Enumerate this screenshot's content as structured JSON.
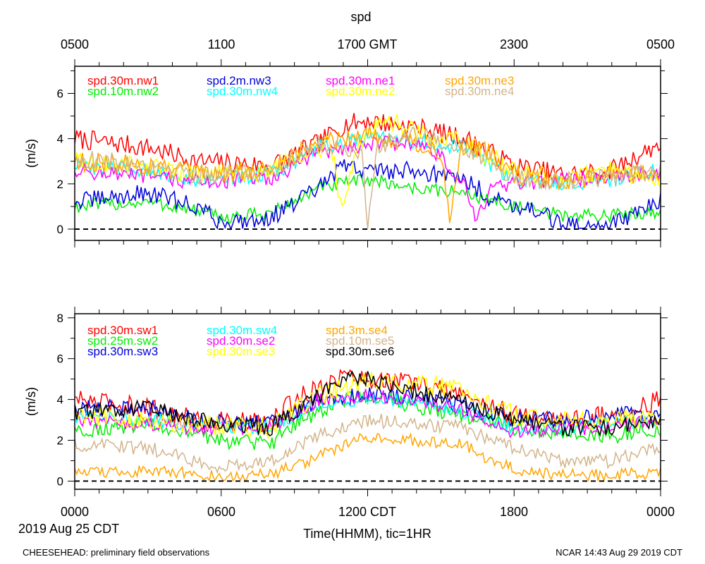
{
  "title": "spd",
  "top_axis": {
    "ticks": [
      "0500",
      "1100",
      "1700 GMT",
      "2300",
      "0500"
    ]
  },
  "bottom_axis": {
    "ticks": [
      "0000",
      "0600",
      "1200 CDT",
      "1800",
      "0000"
    ],
    "label": "Time(HHMM), tic=1HR",
    "date": "2019 Aug 25 CDT"
  },
  "footer": {
    "left": "CHEESEHEAD: preliminary field observations",
    "right": "NCAR 14:43 Aug 29 2019 CDT"
  },
  "chart_data": [
    {
      "type": "line",
      "title": "spd",
      "ylabel": "(m/s)",
      "xlabel": "Time(HHMM), tic=1HR",
      "x_unit": "hours since 0000 CDT 2019 Aug 25",
      "xlim": [
        0,
        24
      ],
      "ylim": [
        -0.5,
        7.2
      ],
      "yticks": [
        0,
        2,
        4,
        6
      ],
      "reference_line": 0,
      "series": [
        {
          "name": "spd.30m.nw1",
          "color": "#ff0000",
          "base": [
            [
              0,
              4.0
            ],
            [
              3,
              3.6
            ],
            [
              5,
              3.0
            ],
            [
              8,
              2.8
            ],
            [
              10,
              3.8
            ],
            [
              11,
              4.6
            ],
            [
              12,
              4.8
            ],
            [
              14,
              4.5
            ],
            [
              16,
              4.0
            ],
            [
              18,
              2.8
            ],
            [
              20,
              2.4
            ],
            [
              22,
              2.6
            ],
            [
              24,
              3.8
            ]
          ],
          "noise": 0.45
        },
        {
          "name": "spd.10m.nw2",
          "color": "#00ee00",
          "base": [
            [
              0,
              1.0
            ],
            [
              3,
              1.2
            ],
            [
              5,
              0.8
            ],
            [
              6,
              0.5
            ],
            [
              8,
              0.7
            ],
            [
              10,
              1.8
            ],
            [
              12,
              2.2
            ],
            [
              14,
              1.8
            ],
            [
              16,
              1.6
            ],
            [
              18,
              1.0
            ],
            [
              20,
              0.6
            ],
            [
              22,
              0.6
            ],
            [
              24,
              0.8
            ]
          ],
          "noise": 0.3
        },
        {
          "name": "spd.2m.nw3",
          "color": "#0000dd",
          "base": [
            [
              0,
              1.2
            ],
            [
              3,
              1.6
            ],
            [
              5,
              1.0
            ],
            [
              6,
              0.3
            ],
            [
              8,
              0.5
            ],
            [
              10,
              1.8
            ],
            [
              11,
              2.8
            ],
            [
              12,
              2.6
            ],
            [
              14,
              2.6
            ],
            [
              16,
              2.2
            ],
            [
              17,
              1.4
            ],
            [
              19,
              0.8
            ],
            [
              20,
              0.1
            ],
            [
              22,
              0.2
            ],
            [
              24,
              1.2
            ]
          ],
          "noise": 0.4
        },
        {
          "name": "spd.30m.nw4",
          "color": "#00ffff",
          "base": [
            [
              0,
              2.8
            ],
            [
              3,
              2.6
            ],
            [
              5,
              2.2
            ],
            [
              8,
              2.4
            ],
            [
              10,
              3.6
            ],
            [
              12,
              4.0
            ],
            [
              14,
              3.9
            ],
            [
              16,
              3.6
            ],
            [
              18,
              2.2
            ],
            [
              20,
              2.0
            ],
            [
              22,
              2.2
            ],
            [
              24,
              2.6
            ]
          ],
          "noise": 0.35
        },
        {
          "name": "spd.30m.ne1",
          "color": "#ff00ff",
          "base": [
            [
              0,
              2.6
            ],
            [
              3,
              2.3
            ],
            [
              5,
              2.1
            ],
            [
              8,
              2.2
            ],
            [
              10,
              3.4
            ],
            [
              12,
              3.8
            ],
            [
              14,
              3.8
            ],
            [
              15,
              3.2
            ],
            [
              16,
              1.8
            ],
            [
              16.5,
              0.3
            ],
            [
              17,
              1.8
            ],
            [
              18,
              2.0
            ],
            [
              20,
              2.2
            ],
            [
              24,
              2.4
            ]
          ],
          "noise": 0.35
        },
        {
          "name": "spd.30m.ne2",
          "color": "#ffff00",
          "base": [
            [
              0,
              3.0
            ],
            [
              3,
              2.8
            ],
            [
              5,
              2.4
            ],
            [
              8,
              2.6
            ],
            [
              10.5,
              3.8
            ],
            [
              11,
              0.5
            ],
            [
              11.5,
              3.5
            ],
            [
              12,
              4.5
            ],
            [
              13,
              4.8
            ],
            [
              14,
              4.2
            ],
            [
              16,
              3.8
            ],
            [
              18,
              2.6
            ],
            [
              20,
              2.2
            ],
            [
              22,
              2.6
            ],
            [
              24,
              2.2
            ]
          ],
          "noise": 0.45
        },
        {
          "name": "spd.30m.ne3",
          "color": "#ffa500",
          "base": [
            [
              0,
              3.0
            ],
            [
              3,
              2.8
            ],
            [
              5,
              2.4
            ],
            [
              8,
              2.6
            ],
            [
              10,
              3.9
            ],
            [
              12,
              4.2
            ],
            [
              14,
              3.8
            ],
            [
              15,
              3.4
            ],
            [
              15.4,
              0.3
            ],
            [
              15.8,
              3.6
            ],
            [
              17,
              3.4
            ],
            [
              18,
              2.4
            ],
            [
              20,
              2.0
            ],
            [
              22,
              2.4
            ],
            [
              24,
              2.4
            ]
          ],
          "noise": 0.45
        },
        {
          "name": "spd.30m.ne4",
          "color": "#d2b48c",
          "base": [
            [
              0,
              3.1
            ],
            [
              3,
              2.9
            ],
            [
              5,
              2.4
            ],
            [
              8,
              2.5
            ],
            [
              10,
              3.8
            ],
            [
              11.8,
              3.4
            ],
            [
              12,
              0.1
            ],
            [
              12.4,
              3.6
            ],
            [
              14,
              4.2
            ],
            [
              16,
              3.6
            ],
            [
              18,
              2.3
            ],
            [
              20,
              2.1
            ],
            [
              22,
              2.3
            ],
            [
              24,
              2.6
            ]
          ],
          "noise": 0.4
        }
      ]
    },
    {
      "type": "line",
      "ylabel": "(m/s)",
      "xlabel": "Time(HHMM), tic=1HR",
      "x_unit": "hours since 0000 CDT 2019 Aug 25",
      "xlim": [
        0,
        24
      ],
      "ylim": [
        -0.4,
        8.2
      ],
      "yticks": [
        0,
        2,
        4,
        6,
        8
      ],
      "reference_line": 0,
      "series": [
        {
          "name": "spd.30m.sw1",
          "color": "#ff0000",
          "base": [
            [
              0,
              4.0
            ],
            [
              3,
              3.6
            ],
            [
              5,
              3.0
            ],
            [
              8,
              2.8
            ],
            [
              9,
              4.0
            ],
            [
              11,
              5.2
            ],
            [
              12,
              5.0
            ],
            [
              14,
              4.8
            ],
            [
              16,
              4.2
            ],
            [
              18,
              3.2
            ],
            [
              20,
              3.0
            ],
            [
              22,
              3.2
            ],
            [
              24,
              4.0
            ]
          ],
          "noise": 0.5
        },
        {
          "name": "spd.25m.sw2",
          "color": "#00ee00",
          "base": [
            [
              0,
              2.5
            ],
            [
              3,
              2.8
            ],
            [
              5,
              2.2
            ],
            [
              6,
              2.0
            ],
            [
              8,
              1.8
            ],
            [
              9,
              2.8
            ],
            [
              11,
              4.0
            ],
            [
              12,
              4.2
            ],
            [
              14,
              3.6
            ],
            [
              16,
              3.2
            ],
            [
              18,
              2.6
            ],
            [
              20,
              2.4
            ],
            [
              22,
              2.2
            ],
            [
              24,
              2.6
            ]
          ],
          "noise": 0.4
        },
        {
          "name": "spd.30m.sw3",
          "color": "#0000dd",
          "base": [
            [
              0,
              3.6
            ],
            [
              3,
              3.6
            ],
            [
              5,
              3.0
            ],
            [
              8,
              2.8
            ],
            [
              10,
              4.0
            ],
            [
              12,
              4.2
            ],
            [
              14,
              4.2
            ],
            [
              16,
              3.6
            ],
            [
              18,
              3.0
            ],
            [
              20,
              3.0
            ],
            [
              22,
              3.2
            ],
            [
              24,
              3.4
            ]
          ],
          "noise": 0.4
        },
        {
          "name": "spd.30m.sw4",
          "color": "#00ffff",
          "base": [
            [
              0,
              3.2
            ],
            [
              3,
              3.0
            ],
            [
              5,
              2.8
            ],
            [
              8,
              2.6
            ],
            [
              10,
              3.8
            ],
            [
              12,
              4.0
            ],
            [
              14,
              3.9
            ],
            [
              16,
              3.4
            ],
            [
              18,
              2.6
            ],
            [
              20,
              2.6
            ],
            [
              22,
              2.8
            ],
            [
              24,
              3.0
            ]
          ],
          "noise": 0.35
        },
        {
          "name": "spd.30m.se2",
          "color": "#ff00ff",
          "base": [
            [
              0,
              3.0
            ],
            [
              3,
              2.8
            ],
            [
              5,
              2.6
            ],
            [
              8,
              2.6
            ],
            [
              10,
              4.0
            ],
            [
              12,
              4.2
            ],
            [
              14,
              4.0
            ],
            [
              16,
              3.4
            ],
            [
              18,
              2.4
            ],
            [
              20,
              2.6
            ],
            [
              22,
              2.6
            ],
            [
              24,
              3.0
            ]
          ],
          "noise": 0.35
        },
        {
          "name": "spd.30m.se3",
          "color": "#ffff00",
          "base": [
            [
              0,
              3.2
            ],
            [
              3,
              3.0
            ],
            [
              5,
              2.8
            ],
            [
              8,
              2.6
            ],
            [
              10,
              4.2
            ],
            [
              12,
              5.0
            ],
            [
              14,
              4.8
            ],
            [
              16,
              4.4
            ],
            [
              18,
              3.2
            ],
            [
              20,
              3.0
            ],
            [
              22,
              3.0
            ],
            [
              24,
              3.2
            ]
          ],
          "noise": 0.5
        },
        {
          "name": "spd.3m.se4",
          "color": "#ffa500",
          "base": [
            [
              0,
              0.4
            ],
            [
              3,
              0.5
            ],
            [
              5,
              0.4
            ],
            [
              6,
              0.2
            ],
            [
              8,
              0.3
            ],
            [
              10,
              1.2
            ],
            [
              12,
              2.2
            ],
            [
              14,
              2.0
            ],
            [
              16,
              1.8
            ],
            [
              17,
              1.0
            ],
            [
              18,
              0.6
            ],
            [
              20,
              0.3
            ],
            [
              22,
              0.3
            ],
            [
              24,
              0.4
            ]
          ],
          "noise": 0.3
        },
        {
          "name": "spd.10m.se5",
          "color": "#d2b48c",
          "base": [
            [
              0,
              1.8
            ],
            [
              3,
              1.6
            ],
            [
              5,
              1.0
            ],
            [
              6,
              0.7
            ],
            [
              8,
              1.0
            ],
            [
              10,
              2.2
            ],
            [
              12,
              3.0
            ],
            [
              14,
              2.8
            ],
            [
              16,
              2.6
            ],
            [
              18,
              1.6
            ],
            [
              20,
              1.0
            ],
            [
              22,
              1.0
            ],
            [
              24,
              1.6
            ]
          ],
          "noise": 0.35
        },
        {
          "name": "spd.30m.se6",
          "color": "#000000",
          "base": [
            [
              0,
              3.4
            ],
            [
              3,
              3.6
            ],
            [
              5,
              3.0
            ],
            [
              6,
              2.8
            ],
            [
              8,
              2.6
            ],
            [
              10,
              4.2
            ],
            [
              11,
              5.0
            ],
            [
              12,
              5.0
            ],
            [
              14,
              4.4
            ],
            [
              16,
              3.8
            ],
            [
              18,
              3.0
            ],
            [
              20,
              2.6
            ],
            [
              22,
              2.6
            ],
            [
              24,
              3.0
            ]
          ],
          "noise": 0.4
        }
      ]
    }
  ]
}
